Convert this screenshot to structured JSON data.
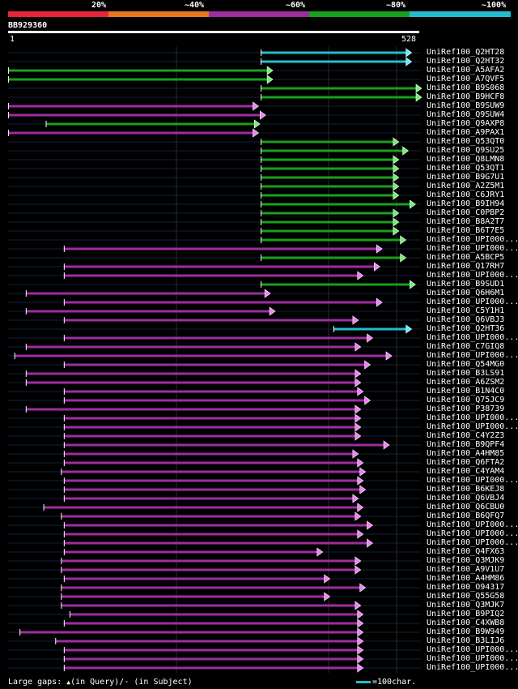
{
  "legend": {
    "labels": [
      "20%",
      "~40%",
      "~60%",
      "~80%",
      "~100%"
    ],
    "colors": [
      "#e8243c",
      "#e8761c",
      "#9c2ea0",
      "#18a01c",
      "#22bcd0"
    ]
  },
  "query": {
    "id": "BB929360",
    "start_label": "1",
    "end_label": "528",
    "length": 528
  },
  "footer": {
    "gaps_prefix": "Large gaps: ",
    "gap_query_symbol": "▲",
    "gaps_query": "(in Query)/",
    "gap_subject_symbol": "-",
    "gaps_subject": " (in Subject)",
    "scale_text": "=100char."
  },
  "hits": [
    {
      "name": "UniRef100_Q2HT28",
      "color": "cyan",
      "start": 532,
      "end": 847
    },
    {
      "name": "UniRef100_Q2HT32",
      "color": "cyan",
      "start": 532,
      "end": 847
    },
    {
      "name": "UniRef100_A5AFA2",
      "color": "green",
      "start": 1,
      "end": 555
    },
    {
      "name": "UniRef100_A7QVF5",
      "color": "green",
      "start": 1,
      "end": 555
    },
    {
      "name": "UniRef100_B9S068",
      "color": "green",
      "start": 532,
      "end": 868
    },
    {
      "name": "UniRef100_B9HCF8",
      "color": "green",
      "start": 532,
      "end": 868
    },
    {
      "name": "UniRef100_B9SUW9",
      "color": "purple",
      "start": 1,
      "end": 525
    },
    {
      "name": "UniRef100_Q9SUW4",
      "color": "purple",
      "start": 1,
      "end": 540
    },
    {
      "name": "UniRef100_Q9AXP8",
      "color": "green",
      "start": 80,
      "end": 528
    },
    {
      "name": "UniRef100_A9PAX1",
      "color": "purple",
      "start": 1,
      "end": 525
    },
    {
      "name": "UniRef100_Q53QT0",
      "color": "green",
      "start": 532,
      "end": 820
    },
    {
      "name": "UniRef100_Q9SU25",
      "color": "green",
      "start": 532,
      "end": 840
    },
    {
      "name": "UniRef100_Q8LMN8",
      "color": "green",
      "start": 532,
      "end": 820
    },
    {
      "name": "UniRef100_Q53QT1",
      "color": "green",
      "start": 532,
      "end": 820
    },
    {
      "name": "UniRef100_B9G7U1",
      "color": "green",
      "start": 532,
      "end": 820
    },
    {
      "name": "UniRef100_A2Z5M1",
      "color": "green",
      "start": 532,
      "end": 820
    },
    {
      "name": "UniRef100_C6JRY1",
      "color": "green",
      "start": 532,
      "end": 820
    },
    {
      "name": "UniRef100_B9IH94",
      "color": "green",
      "start": 532,
      "end": 855
    },
    {
      "name": "UniRef100_C0PBP2",
      "color": "green",
      "start": 532,
      "end": 820
    },
    {
      "name": "UniRef100_B8A2T7",
      "color": "green",
      "start": 532,
      "end": 820
    },
    {
      "name": "UniRef100_B6T7E5",
      "color": "green",
      "start": 532,
      "end": 820
    },
    {
      "name": "UniRef100_UPI000...",
      "color": "green",
      "start": 532,
      "end": 835
    },
    {
      "name": "UniRef100_UPI000...",
      "color": "purple",
      "start": 118,
      "end": 785
    },
    {
      "name": "UniRef100_A5BCP5",
      "color": "green",
      "start": 532,
      "end": 835
    },
    {
      "name": "UniRef100_Q17RH7",
      "color": "purple",
      "start": 118,
      "end": 780
    },
    {
      "name": "UniRef100_UPI000...",
      "color": "purple",
      "start": 118,
      "end": 745
    },
    {
      "name": "UniRef100_B9SUD1",
      "color": "green",
      "start": 532,
      "end": 855
    },
    {
      "name": "UniRef100_Q6H6M1",
      "color": "purple",
      "start": 38,
      "end": 550
    },
    {
      "name": "UniRef100_UPI000...",
      "color": "purple",
      "start": 118,
      "end": 785
    },
    {
      "name": "UniRef100_C5Y1H1",
      "color": "purple",
      "start": 38,
      "end": 560
    },
    {
      "name": "UniRef100_Q6VBJ3",
      "color": "purple",
      "start": 118,
      "end": 735
    },
    {
      "name": "UniRef100_Q2HT36",
      "color": "cyan",
      "start": 685,
      "end": 847
    },
    {
      "name": "UniRef100_UPI000...",
      "color": "purple",
      "start": 118,
      "end": 765
    },
    {
      "name": "UniRef100_C7GIQ8",
      "color": "purple",
      "start": 38,
      "end": 740
    },
    {
      "name": "UniRef100_UPI000...",
      "color": "purple",
      "start": 14,
      "end": 805
    },
    {
      "name": "UniRef100_Q54MG0",
      "color": "purple",
      "start": 118,
      "end": 760
    },
    {
      "name": "UniRef100_B3LS91",
      "color": "purple",
      "start": 38,
      "end": 740
    },
    {
      "name": "UniRef100_A6ZSM2",
      "color": "purple",
      "start": 38,
      "end": 740
    },
    {
      "name": "UniRef100_B1N4C0",
      "color": "purple",
      "start": 118,
      "end": 745
    },
    {
      "name": "UniRef100_Q75JC9",
      "color": "purple",
      "start": 118,
      "end": 760
    },
    {
      "name": "UniRef100_P38739",
      "color": "purple",
      "start": 38,
      "end": 740
    },
    {
      "name": "UniRef100_UPI000...",
      "color": "purple",
      "start": 118,
      "end": 740
    },
    {
      "name": "UniRef100_UPI000...",
      "color": "purple",
      "start": 118,
      "end": 740
    },
    {
      "name": "UniRef100_C4Y2Z3",
      "color": "purple",
      "start": 118,
      "end": 740
    },
    {
      "name": "UniRef100_B9QPF4",
      "color": "purple",
      "start": 118,
      "end": 800
    },
    {
      "name": "UniRef100_A4HM85",
      "color": "purple",
      "start": 118,
      "end": 735
    },
    {
      "name": "UniRef100_Q6FTA2",
      "color": "purple",
      "start": 118,
      "end": 745
    },
    {
      "name": "UniRef100_C4YAM4",
      "color": "purple",
      "start": 112,
      "end": 750
    },
    {
      "name": "UniRef100_UPI000...",
      "color": "purple",
      "start": 118,
      "end": 745
    },
    {
      "name": "UniRef100_B6KEJ8",
      "color": "purple",
      "start": 118,
      "end": 750
    },
    {
      "name": "UniRef100_Q6VBJ4",
      "color": "purple",
      "start": 118,
      "end": 735
    },
    {
      "name": "UniRef100_Q6CBU0",
      "color": "purple",
      "start": 75,
      "end": 745
    },
    {
      "name": "UniRef100_B6QFQ7",
      "color": "purple",
      "start": 112,
      "end": 740
    },
    {
      "name": "UniRef100_UPI000...",
      "color": "purple",
      "start": 118,
      "end": 765
    },
    {
      "name": "UniRef100_UPI000...",
      "color": "purple",
      "start": 118,
      "end": 745
    },
    {
      "name": "UniRef100_UPI000...",
      "color": "purple",
      "start": 118,
      "end": 765
    },
    {
      "name": "UniRef100_Q4FX63",
      "color": "purple",
      "start": 118,
      "end": 660
    },
    {
      "name": "UniRef100_Q3MJK9",
      "color": "purple",
      "start": 112,
      "end": 740
    },
    {
      "name": "UniRef100_A9V1U7",
      "color": "purple",
      "start": 112,
      "end": 740
    },
    {
      "name": "UniRef100_A4HM86",
      "color": "purple",
      "start": 118,
      "end": 675
    },
    {
      "name": "UniRef100_O94317",
      "color": "purple",
      "start": 112,
      "end": 750
    },
    {
      "name": "UniRef100_Q55G58",
      "color": "purple",
      "start": 112,
      "end": 675
    },
    {
      "name": "UniRef100_Q3MJK7",
      "color": "purple",
      "start": 112,
      "end": 740
    },
    {
      "name": "UniRef100_B9PIQ2",
      "color": "purple",
      "start": 130,
      "end": 745
    },
    {
      "name": "UniRef100_C4XWB8",
      "color": "purple",
      "start": 118,
      "end": 745
    },
    {
      "name": "UniRef100_B9W949",
      "color": "purple",
      "start": 25,
      "end": 745
    },
    {
      "name": "UniRef100_B3LIJ6",
      "color": "purple",
      "start": 100,
      "end": 745
    },
    {
      "name": "UniRef100_UPI000...",
      "color": "purple",
      "start": 118,
      "end": 745
    },
    {
      "name": "UniRef100_UPI000...",
      "color": "purple",
      "start": 118,
      "end": 745
    },
    {
      "name": "UniRef100_UPI000...",
      "color": "purple",
      "start": 118,
      "end": 745
    }
  ]
}
